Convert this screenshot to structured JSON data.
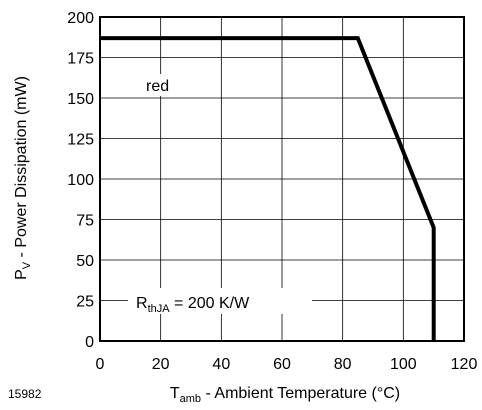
{
  "chart_data": {
    "type": "line",
    "title": "",
    "xlabel": {
      "main": "T",
      "sub": "amb",
      "rest": " - Ambient Temperature (°C)"
    },
    "ylabel": {
      "main": "P",
      "sub": "V",
      "rest": " - Power Dissipation (mW)"
    },
    "xlim": [
      0,
      120
    ],
    "ylim": [
      0,
      200
    ],
    "xticks": [
      0,
      20,
      40,
      60,
      80,
      100,
      120
    ],
    "yticks": [
      0,
      25,
      50,
      75,
      100,
      125,
      150,
      175,
      200
    ],
    "grid": true,
    "series": [
      {
        "name": "red",
        "x": [
          0,
          85,
          110,
          110
        ],
        "y": [
          187,
          187,
          70,
          0
        ]
      }
    ],
    "annotations": {
      "series_label": "red",
      "rth": {
        "main": "R",
        "sub": "thJA",
        "rest": " = 200 K/W"
      }
    },
    "figure_number": "15982"
  }
}
